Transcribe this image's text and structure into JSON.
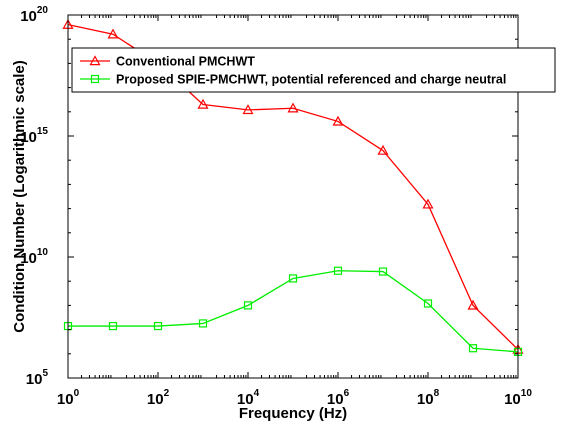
{
  "chart_data": {
    "type": "line",
    "xscale": "log",
    "yscale": "log",
    "xlim": [
      1,
      10000000000
    ],
    "ylim": [
      100000,
      100000000000000000000
    ],
    "xlabel": "Frequency (Hz)",
    "ylabel": "Condition Number (Logarithmic scale)",
    "x_ticks": [
      {
        "value": 1,
        "base": "10",
        "exp": "0"
      },
      {
        "value": 100,
        "base": "10",
        "exp": "2"
      },
      {
        "value": 10000,
        "base": "10",
        "exp": "4"
      },
      {
        "value": 1000000,
        "base": "10",
        "exp": "6"
      },
      {
        "value": 100000000,
        "base": "10",
        "exp": "8"
      },
      {
        "value": 10000000000,
        "base": "10",
        "exp": "10"
      }
    ],
    "y_ticks": [
      {
        "value": 100000,
        "base": "10",
        "exp": "5"
      },
      {
        "value": 10000000000,
        "base": "10",
        "exp": "10"
      },
      {
        "value": 1000000000000000,
        "base": "10",
        "exp": "15"
      },
      {
        "value": 100000000000000000000,
        "base": "10",
        "exp": "20"
      }
    ],
    "legend_position": "top-right",
    "grid": false,
    "series": [
      {
        "name": "Conventional PMCHWT",
        "color": "#ff0000",
        "marker": "triangle",
        "x": [
          1,
          10,
          100,
          1000,
          10000,
          100000,
          1000000,
          10000000,
          100000000,
          1000000000,
          10000000000
        ],
        "y": [
          4e+19,
          1.6e+19,
          1e+18,
          2e+16,
          1.2e+16,
          1.4e+16,
          4000000000000000.0,
          250000000000000.0,
          1500000000000.0,
          100000000.0,
          1500000.0
        ]
      },
      {
        "name": "Proposed SPIE-PMCHWT, potential referenced and charge neutral",
        "color": "#00ee00",
        "marker": "square",
        "x": [
          1,
          10,
          100,
          1000,
          10000,
          100000,
          1000000,
          10000000,
          100000000,
          1000000000,
          10000000000
        ],
        "y": [
          14000000.0,
          14000000.0,
          14000000.0,
          18000000.0,
          100000000.0,
          1300000000.0,
          2700000000.0,
          2500000000.0,
          120000000.0,
          1700000.0,
          1200000.0
        ]
      }
    ]
  }
}
